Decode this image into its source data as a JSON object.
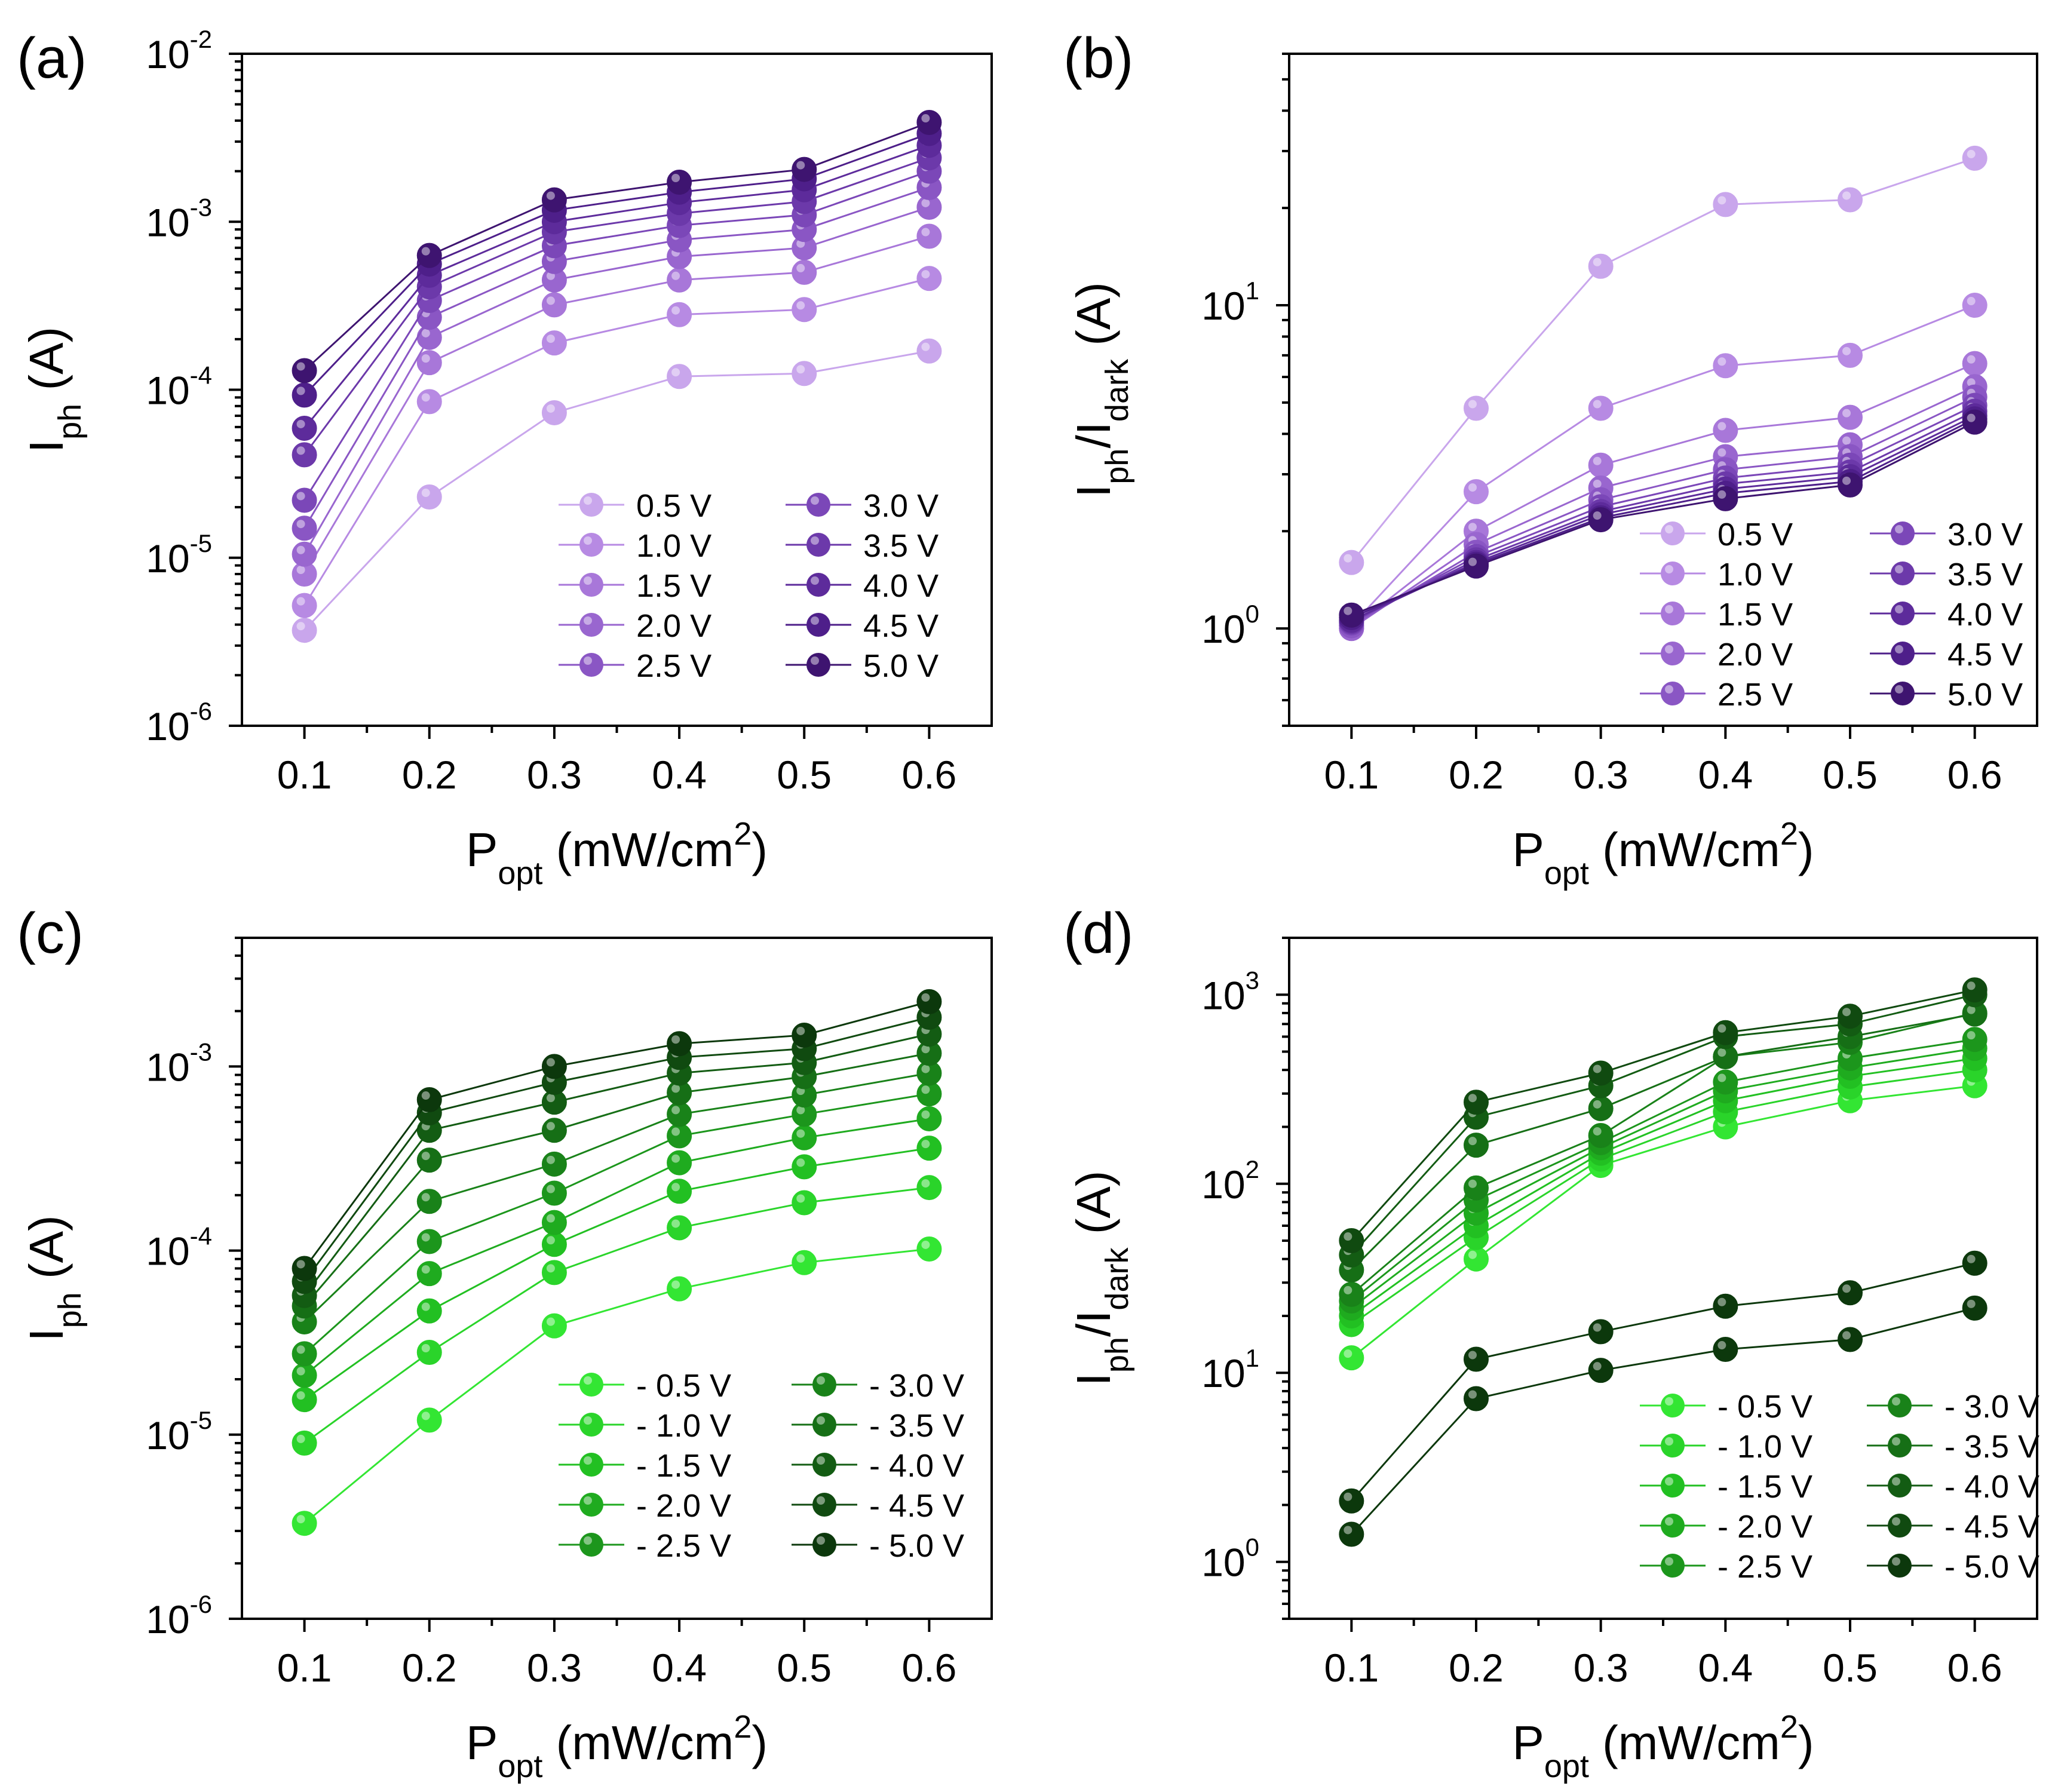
{
  "chart_data": [
    {
      "panel_label": "(a)",
      "type": "line",
      "yscale": "log",
      "ylim": [
        1e-06,
        0.01
      ],
      "xlim": [
        0.05,
        0.65
      ],
      "xticks": [
        "0.1",
        "0.2",
        "0.3",
        "0.4",
        "0.5",
        "0.6"
      ],
      "yticks": [
        {
          "base": "10",
          "exp": "-6"
        },
        {
          "base": "10",
          "exp": "-5"
        },
        {
          "base": "10",
          "exp": "-4"
        },
        {
          "base": "10",
          "exp": "-3"
        },
        {
          "base": "10",
          "exp": "-2"
        }
      ],
      "xlabel": {
        "main": "P",
        "sub": "opt",
        "unit": " (mW/cm",
        "sup": "2",
        "close": ")"
      },
      "ylabel": {
        "main": "I",
        "sub": "ph",
        "rest": " (A)"
      },
      "x": [
        0.1,
        0.2,
        0.3,
        0.4,
        0.5,
        0.6
      ],
      "series": [
        {
          "name": "0.5 V",
          "color": "#c9a6ec",
          "values": [
            3.7e-06,
            2.3e-05,
            7.3e-05,
            0.00012,
            0.000125,
            0.00017
          ]
        },
        {
          "name": "1.0 V",
          "color": "#b78ae3",
          "values": [
            5.2e-06,
            8.5e-05,
            0.00019,
            0.00028,
            0.0003,
            0.00046
          ]
        },
        {
          "name": "1.5 V",
          "color": "#a877d9",
          "values": [
            8e-06,
            0.000145,
            0.00032,
            0.00045,
            0.0005,
            0.00082
          ]
        },
        {
          "name": "2.0 V",
          "color": "#9966cf",
          "values": [
            1.05e-05,
            0.000205,
            0.00045,
            0.00062,
            0.0007,
            0.00122
          ]
        },
        {
          "name": "2.5 V",
          "color": "#8a56c4",
          "values": [
            1.5e-05,
            0.00027,
            0.00058,
            0.00078,
            0.0009,
            0.0016
          ]
        },
        {
          "name": "3.0 V",
          "color": "#7b47b8",
          "values": [
            2.2e-05,
            0.00034,
            0.00072,
            0.00095,
            0.0011,
            0.002
          ]
        },
        {
          "name": "3.5 V",
          "color": "#6c39aa",
          "values": [
            4.1e-05,
            0.00041,
            0.00087,
            0.00112,
            0.00132,
            0.0024
          ]
        },
        {
          "name": "4.0 V",
          "color": "#5d2b9b",
          "values": [
            5.9e-05,
            0.00048,
            0.001,
            0.0013,
            0.00155,
            0.00285
          ]
        },
        {
          "name": "4.5 V",
          "color": "#4e1f8a",
          "values": [
            9.3e-05,
            0.00056,
            0.00117,
            0.0015,
            0.0018,
            0.00335
          ]
        },
        {
          "name": "5.0 V",
          "color": "#3e1470",
          "values": [
            0.00013,
            0.00063,
            0.00135,
            0.00172,
            0.00205,
            0.0039
          ]
        }
      ]
    },
    {
      "panel_label": "(b)",
      "type": "line",
      "yscale": "log",
      "ylim": [
        0.5,
        60
      ],
      "xlim": [
        0.05,
        0.65
      ],
      "xticks": [
        "0.1",
        "0.2",
        "0.3",
        "0.4",
        "0.5",
        "0.6"
      ],
      "yticks": [
        {
          "base": "10",
          "exp": "0"
        },
        {
          "base": "10",
          "exp": "1"
        }
      ],
      "xlabel": {
        "main": "P",
        "sub": "opt",
        "unit": " (mW/cm",
        "sup": "2",
        "close": ")"
      },
      "ylabel": {
        "main": "I",
        "sub": "ph",
        "mid": "/I",
        "sub2": "dark",
        "rest": " (A)"
      },
      "x": [
        0.1,
        0.2,
        0.3,
        0.4,
        0.5,
        0.6
      ],
      "series": [
        {
          "name": "0.5 V",
          "color": "#c9a6ec",
          "values": [
            1.6,
            4.8,
            13.2,
            20.5,
            21.2,
            28.5
          ]
        },
        {
          "name": "1.0 V",
          "color": "#b78ae3",
          "values": [
            1.02,
            2.65,
            4.8,
            6.5,
            7.0,
            10.0
          ]
        },
        {
          "name": "1.5 V",
          "color": "#a877d9",
          "values": [
            1.0,
            2.0,
            3.2,
            4.1,
            4.5,
            6.6
          ]
        },
        {
          "name": "2.0 V",
          "color": "#9966cf",
          "values": [
            1.0,
            1.82,
            2.72,
            3.4,
            3.7,
            5.6
          ]
        },
        {
          "name": "2.5 V",
          "color": "#8a56c4",
          "values": [
            1.02,
            1.72,
            2.5,
            3.1,
            3.4,
            5.2
          ]
        },
        {
          "name": "3.0 V",
          "color": "#7b47b8",
          "values": [
            1.04,
            1.67,
            2.38,
            2.92,
            3.2,
            4.9
          ]
        },
        {
          "name": "3.5 V",
          "color": "#6c39aa",
          "values": [
            1.05,
            1.63,
            2.3,
            2.8,
            3.05,
            4.7
          ]
        },
        {
          "name": "4.0 V",
          "color": "#5d2b9b",
          "values": [
            1.06,
            1.6,
            2.25,
            2.7,
            2.95,
            4.55
          ]
        },
        {
          "name": "4.5 V",
          "color": "#4e1f8a",
          "values": [
            1.08,
            1.58,
            2.2,
            2.62,
            2.85,
            4.45
          ]
        },
        {
          "name": "5.0 V",
          "color": "#3e1470",
          "values": [
            1.1,
            1.56,
            2.17,
            2.52,
            2.78,
            4.35
          ]
        }
      ]
    },
    {
      "panel_label": "(c)",
      "type": "line",
      "yscale": "log",
      "ylim": [
        1e-06,
        0.005
      ],
      "xlim": [
        0.05,
        0.65
      ],
      "xticks": [
        "0.1",
        "0.2",
        "0.3",
        "0.4",
        "0.5",
        "0.6"
      ],
      "yticks": [
        {
          "base": "10",
          "exp": "-6"
        },
        {
          "base": "10",
          "exp": "-5"
        },
        {
          "base": "10",
          "exp": "-4"
        },
        {
          "base": "10",
          "exp": "-3"
        }
      ],
      "xlabel": {
        "main": "P",
        "sub": "opt",
        "unit": " (mW/cm",
        "sup": "2",
        "close": ")"
      },
      "ylabel": {
        "main": "I",
        "sub": "ph",
        "rest": " (A)"
      },
      "x": [
        0.1,
        0.2,
        0.3,
        0.4,
        0.5,
        0.6
      ],
      "series": [
        {
          "name": "- 0.5 V",
          "color": "#33e633",
          "values": [
            3.3e-06,
            1.2e-05,
            3.9e-05,
            6.2e-05,
            8.6e-05,
            0.000102
          ]
        },
        {
          "name": "- 1.0 V",
          "color": "#2ad42a",
          "values": [
            9e-06,
            2.8e-05,
            7.6e-05,
            0.000133,
            0.000182,
            0.00022
          ]
        },
        {
          "name": "- 1.5 V",
          "color": "#22c022",
          "values": [
            1.55e-05,
            4.7e-05,
            0.000108,
            0.00021,
            0.000285,
            0.00036
          ]
        },
        {
          "name": "- 2.0 V",
          "color": "#1fab1f",
          "values": [
            2.1e-05,
            7.5e-05,
            0.000142,
            0.0003,
            0.00041,
            0.00052
          ]
        },
        {
          "name": "- 2.5 V",
          "color": "#1c961c",
          "values": [
            2.75e-05,
            0.000112,
            0.000205,
            0.00042,
            0.00055,
            0.00071
          ]
        },
        {
          "name": "- 3.0 V",
          "color": "#198219",
          "values": [
            4.1e-05,
            0.000185,
            0.000295,
            0.00055,
            0.0007,
            0.00092
          ]
        },
        {
          "name": "- 3.5 V",
          "color": "#166f16",
          "values": [
            5e-05,
            0.00031,
            0.00045,
            0.00072,
            0.00088,
            0.00118
          ]
        },
        {
          "name": "- 4.0 V",
          "color": "#135c13",
          "values": [
            5.7e-05,
            0.00045,
            0.00064,
            0.00092,
            0.00105,
            0.0015
          ]
        },
        {
          "name": "- 4.5 V",
          "color": "#104a10",
          "values": [
            6.8e-05,
            0.00056,
            0.00082,
            0.00112,
            0.00125,
            0.00185
          ]
        },
        {
          "name": "- 5.0 V",
          "color": "#0c380c",
          "values": [
            8e-05,
            0.00066,
            0.001,
            0.00133,
            0.00148,
            0.00225
          ]
        }
      ]
    },
    {
      "panel_label": "(d)",
      "type": "line",
      "yscale": "log",
      "ylim": [
        0.5,
        2000
      ],
      "xlim": [
        0.05,
        0.65
      ],
      "xticks": [
        "0.1",
        "0.2",
        "0.3",
        "0.4",
        "0.5",
        "0.6"
      ],
      "yticks": [
        {
          "base": "10",
          "exp": "0"
        },
        {
          "base": "10",
          "exp": "1"
        },
        {
          "base": "10",
          "exp": "2"
        },
        {
          "base": "10",
          "exp": "3"
        }
      ],
      "xlabel": {
        "main": "P",
        "sub": "opt",
        "unit": " (mW/cm",
        "sup": "2",
        "close": ")"
      },
      "ylabel": {
        "main": "I",
        "sub": "ph",
        "mid": "/I",
        "sub2": "dark",
        "rest": " (A)"
      },
      "x": [
        0.1,
        0.2,
        0.3,
        0.4,
        0.5,
        0.6
      ],
      "series": [
        {
          "name": "- 0.5 V",
          "color": "#33e633",
          "values": [
            12,
            40,
            125,
            200,
            275,
            330
          ]
        },
        {
          "name": "- 1.0 V",
          "color": "#2ad42a",
          "values": [
            18,
            52,
            135,
            240,
            325,
            400
          ]
        },
        {
          "name": "- 1.5 V",
          "color": "#22c022",
          "values": [
            20,
            60,
            145,
            275,
            370,
            460
          ]
        },
        {
          "name": "- 2.0 V",
          "color": "#1fab1f",
          "values": [
            22,
            70,
            155,
            310,
            410,
            520
          ]
        },
        {
          "name": "- 2.5 V",
          "color": "#1c961c",
          "values": [
            24,
            82,
            165,
            345,
            460,
            580
          ]
        },
        {
          "name": "- 3.0 V",
          "color": "#198219",
          "values": [
            26,
            95,
            180,
            470,
            560,
            800
          ]
        },
        {
          "name": "- 3.5 V",
          "color": "#166f16",
          "values": [
            35,
            160,
            250,
            470,
            600,
            790
          ]
        },
        {
          "name": "- 4.0 V",
          "color": "#135c13",
          "values": [
            42,
            225,
            330,
            600,
            700,
            1000
          ]
        },
        {
          "name": "- 4.5 V",
          "color": "#104a10",
          "values": [
            50,
            270,
            385,
            630,
            770,
            1060
          ]
        },
        {
          "name": "- 5.0 V",
          "color": "#0c380c",
          "values": [
            2.1,
            11.8,
            16.5,
            22.5,
            26.5,
            38
          ]
        },
        {
          "name": "- 5.0 V (b)",
          "color": "#0c380c",
          "legend": false,
          "values": [
            1.4,
            7.3,
            10.3,
            13.3,
            15.0,
            22
          ]
        }
      ]
    }
  ]
}
